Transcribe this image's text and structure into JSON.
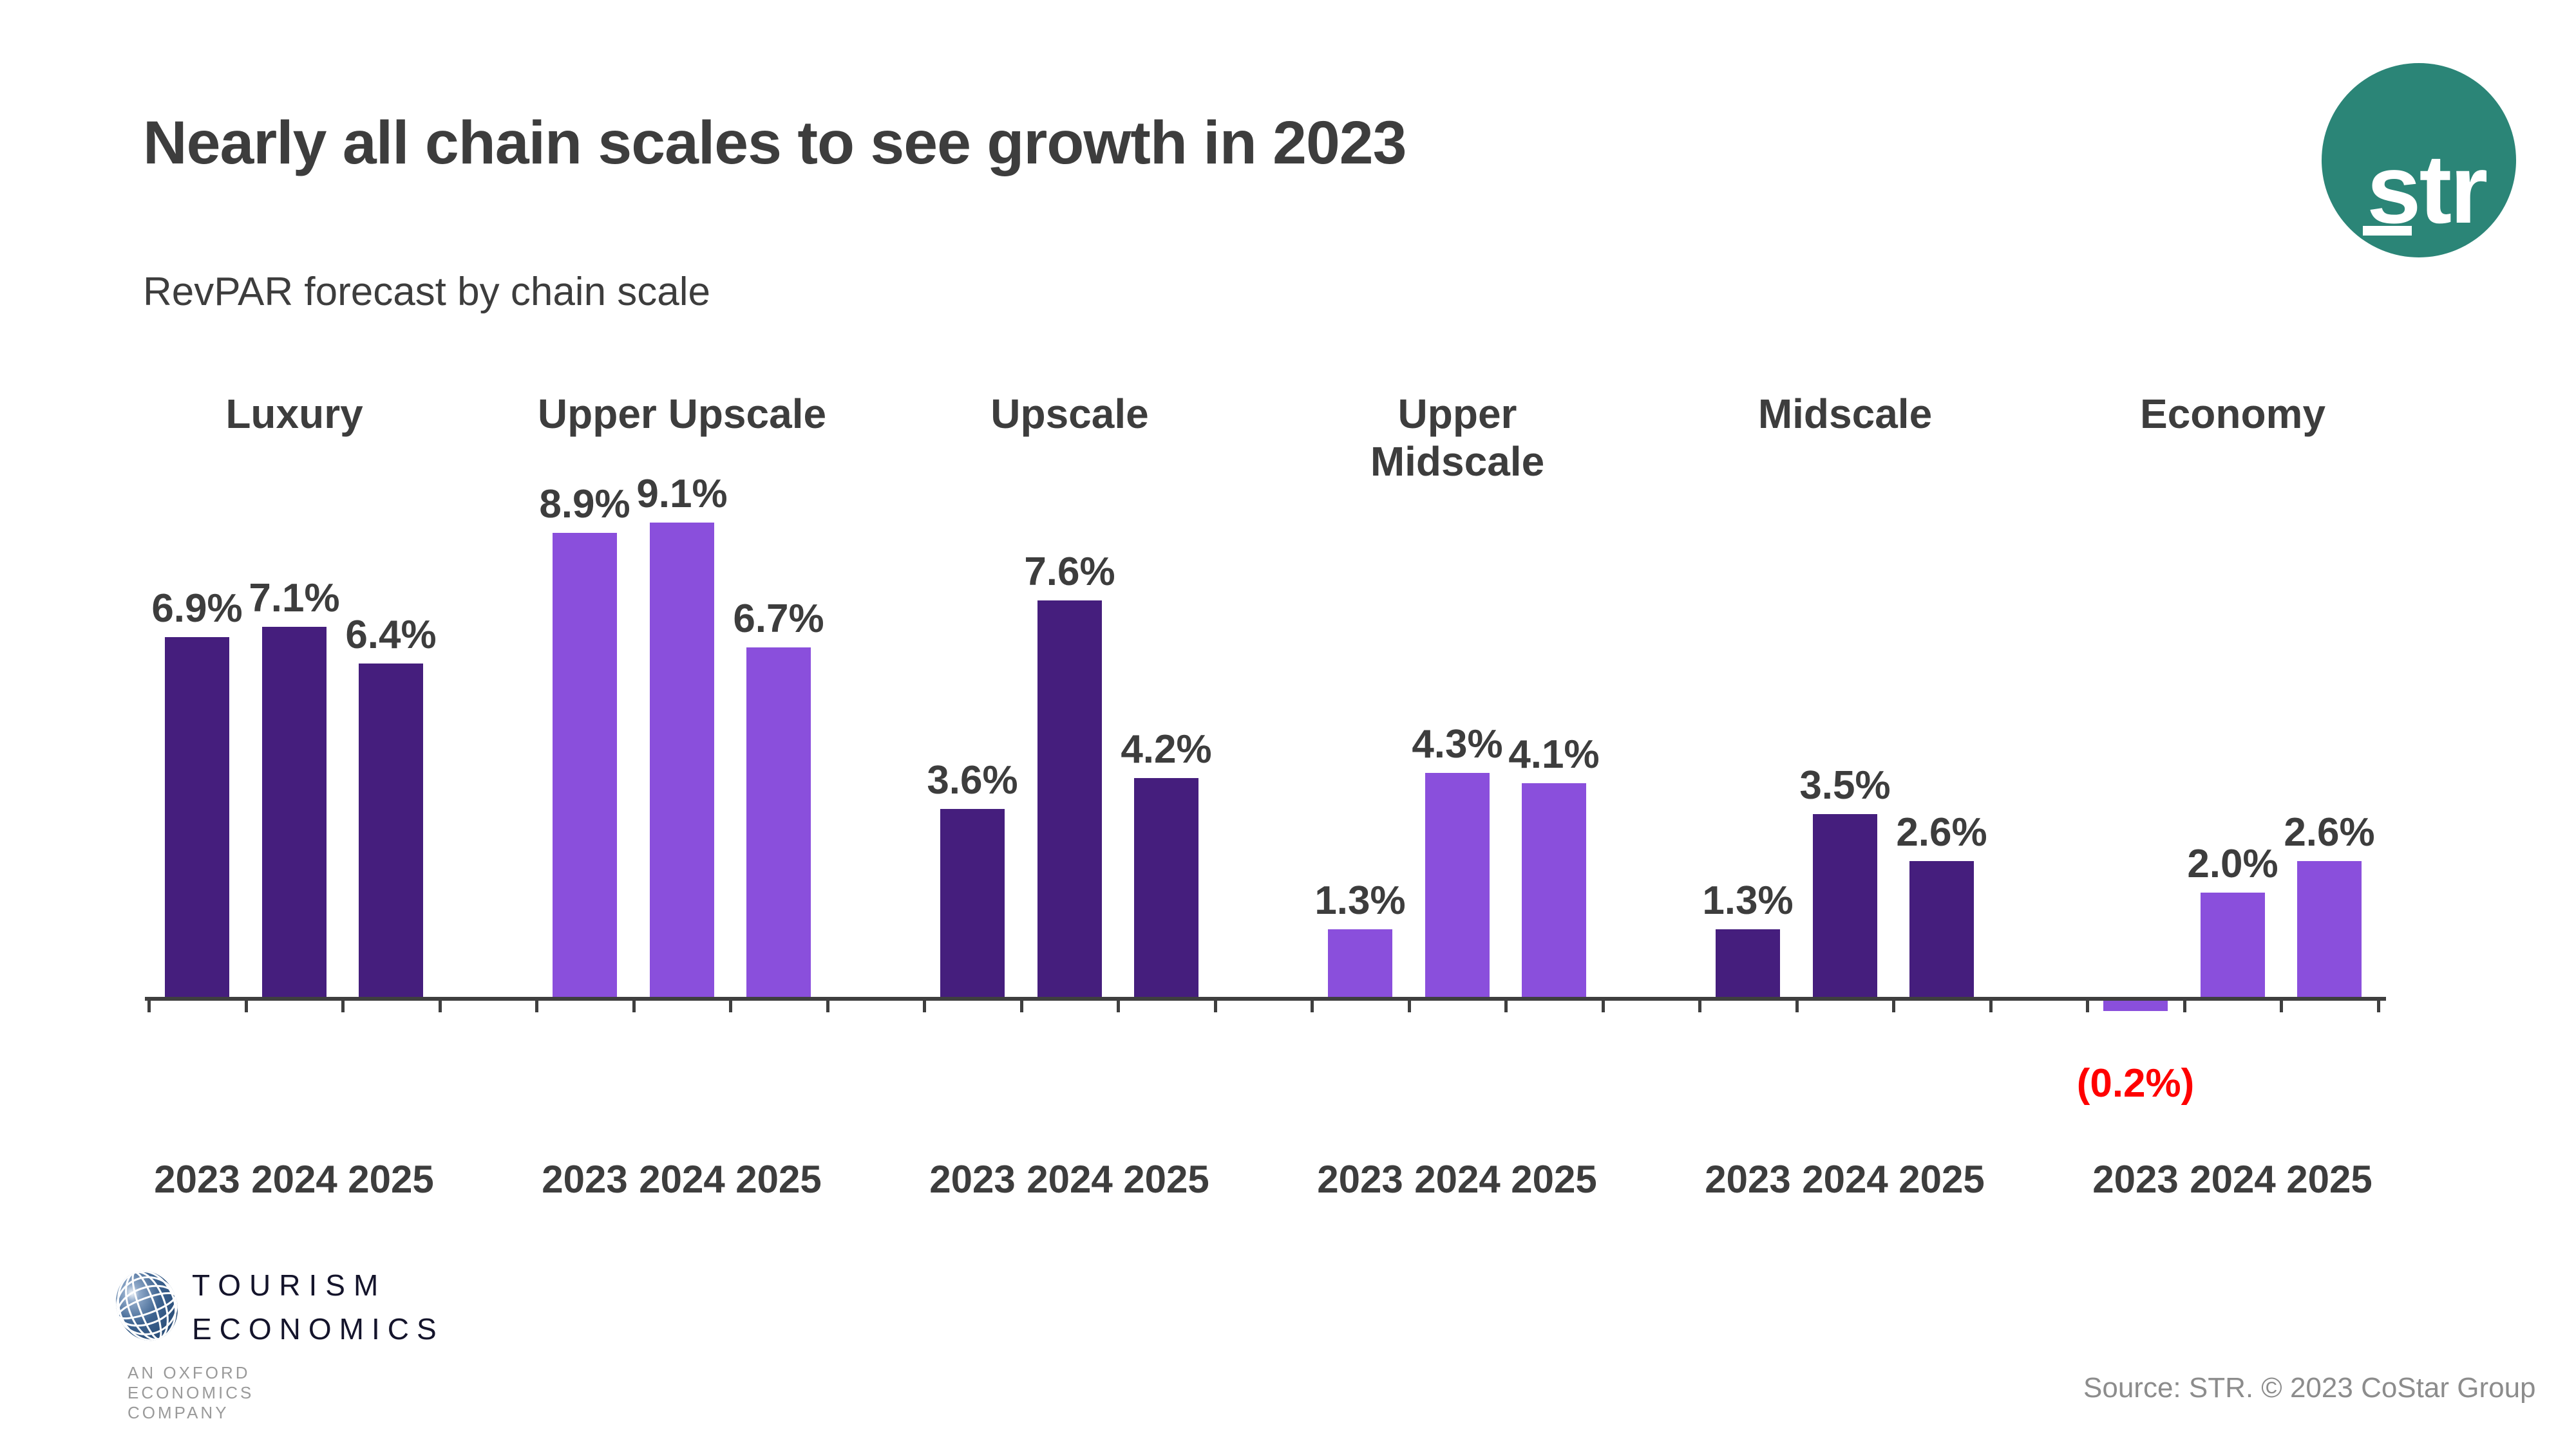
{
  "title": "Nearly all chain scales to see growth in 2023",
  "subtitle": "RevPAR forecast by chain scale",
  "str_logo": {
    "text": "str",
    "circle_color": "#2B8577",
    "text_color": "#ffffff"
  },
  "footer_logo": {
    "line1": "TOURISM",
    "line2": "ECONOMICS",
    "tagline": "AN OXFORD ECONOMICS COMPANY",
    "globe_color": "#2F5179"
  },
  "source": "Source: STR. © 2023 CoStar Group",
  "colors": {
    "dark_purple": "#451E7D",
    "light_purple": "#8A4FDC",
    "negative_label": "#FF0000",
    "text_dark": "#3d3d3d",
    "axis": "#3f3f3f",
    "source_gray": "#8c8c8c"
  },
  "chart_data": {
    "type": "bar",
    "title": "Nearly all chain scales to see growth in 2023",
    "subtitle": "RevPAR forecast by chain scale",
    "unit": "percent",
    "categories": [
      "2023",
      "2024",
      "2025"
    ],
    "ylim": [
      -0.5,
      9.5
    ],
    "grid": false,
    "legend": "none",
    "series": [
      {
        "name": "Luxury",
        "shade": "dark",
        "values": [
          6.9,
          7.1,
          6.4
        ],
        "labels": [
          "6.9%",
          "7.1%",
          "6.4%"
        ]
      },
      {
        "name": "Upper Upscale",
        "shade": "light",
        "values": [
          8.9,
          9.1,
          6.7
        ],
        "labels": [
          "8.9%",
          "9.1%",
          "6.7%"
        ]
      },
      {
        "name": "Upscale",
        "shade": "dark",
        "values": [
          3.6,
          7.6,
          4.2
        ],
        "labels": [
          "3.6%",
          "7.6%",
          "4.2%"
        ]
      },
      {
        "name": "Upper Midscale",
        "shade": "light",
        "values": [
          1.3,
          4.3,
          4.1
        ],
        "labels": [
          "1.3%",
          "4.3%",
          "4.1%"
        ]
      },
      {
        "name": "Midscale",
        "shade": "dark",
        "values": [
          1.3,
          3.5,
          2.6
        ],
        "labels": [
          "1.3%",
          "3.5%",
          "2.6%"
        ]
      },
      {
        "name": "Economy",
        "shade": "light",
        "values": [
          -0.2,
          2.0,
          2.6
        ],
        "labels": [
          "(0.2%)",
          "2.0%",
          "2.6%"
        ]
      }
    ]
  }
}
